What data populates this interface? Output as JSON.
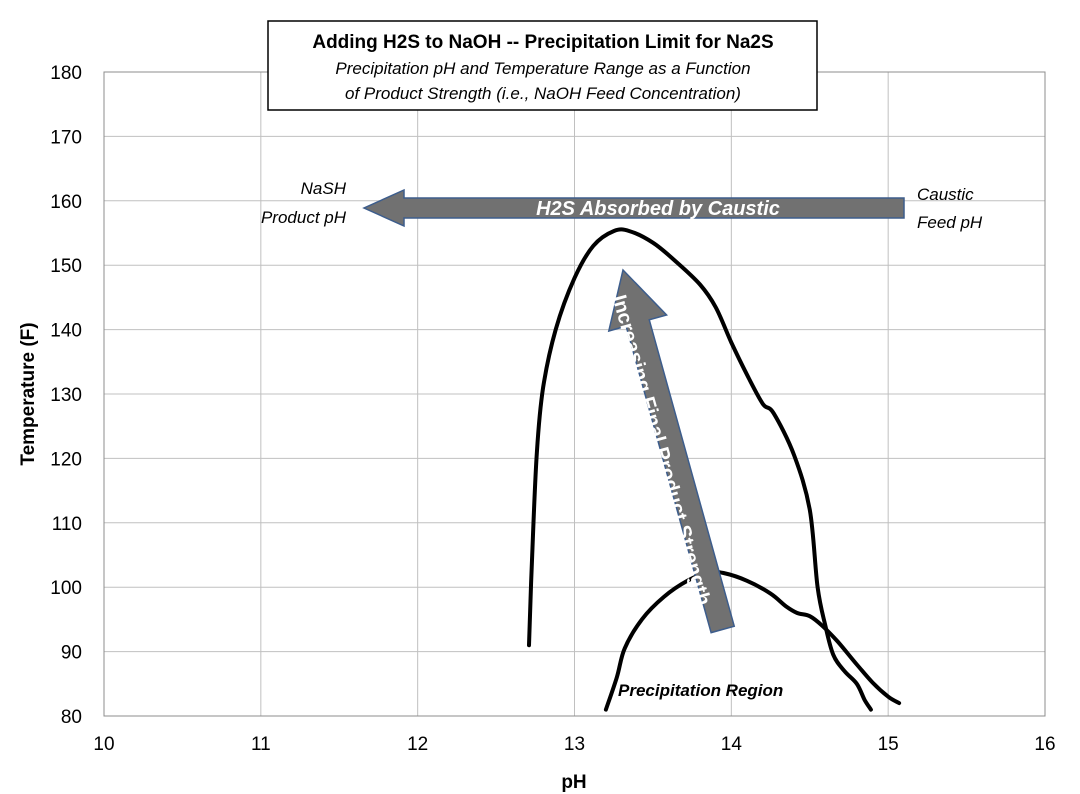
{
  "chart_data": {
    "type": "line",
    "title": "Adding H2S to NaOH -- Precipitation Limit for Na2S",
    "subtitle_lines": [
      "Precipitation pH and Temperature Range as a Function",
      "of Product Strength (i.e., NaOH Feed Concentration)"
    ],
    "xlabel": "pH",
    "ylabel": "Temperature (F)",
    "xlim": [
      10,
      16
    ],
    "ylim": [
      80,
      180
    ],
    "x_ticks": [
      10,
      11,
      12,
      13,
      14,
      15,
      16
    ],
    "y_ticks": [
      80,
      90,
      100,
      110,
      120,
      130,
      140,
      150,
      160,
      170,
      180
    ],
    "grid": true,
    "legend": "none",
    "series": [
      {
        "color": "#000000",
        "points": [
          [
            12.71,
            91
          ],
          [
            12.73,
            105
          ],
          [
            12.76,
            121
          ],
          [
            12.8,
            131
          ],
          [
            12.88,
            140
          ],
          [
            13.0,
            148
          ],
          [
            13.12,
            153
          ],
          [
            13.25,
            155.3
          ],
          [
            13.35,
            155.3
          ],
          [
            13.5,
            153.5
          ],
          [
            13.65,
            150.5
          ],
          [
            13.8,
            147
          ],
          [
            13.9,
            143.5
          ],
          [
            14.0,
            138
          ],
          [
            14.1,
            133
          ],
          [
            14.2,
            128.5
          ],
          [
            14.27,
            127
          ],
          [
            14.4,
            120.5
          ],
          [
            14.5,
            112
          ],
          [
            14.55,
            100
          ],
          [
            14.6,
            94
          ],
          [
            14.65,
            89.5
          ],
          [
            14.72,
            87
          ],
          [
            14.8,
            85
          ],
          [
            14.85,
            82.5
          ],
          [
            14.89,
            81
          ]
        ]
      },
      {
        "color": "#000000",
        "points": [
          [
            13.2,
            81
          ],
          [
            13.27,
            86
          ],
          [
            13.32,
            90.5
          ],
          [
            13.43,
            95
          ],
          [
            13.57,
            98.5
          ],
          [
            13.72,
            101
          ],
          [
            13.85,
            102.3
          ],
          [
            13.95,
            102.2
          ],
          [
            14.1,
            101
          ],
          [
            14.25,
            99
          ],
          [
            14.35,
            97
          ],
          [
            14.42,
            96
          ],
          [
            14.5,
            95.5
          ],
          [
            14.58,
            94
          ],
          [
            14.68,
            91.5
          ],
          [
            14.8,
            88
          ],
          [
            14.9,
            85.2
          ],
          [
            15.0,
            83
          ],
          [
            15.07,
            82
          ]
        ]
      }
    ],
    "annotations": {
      "nash_lines": [
        "NaSH",
        "Product pH"
      ],
      "caustic_lines": [
        "Caustic",
        "Feed pH"
      ],
      "horizontal_arrow_label": "H2S Absorbed by Caustic",
      "diagonal_arrow_label": "Increasing Final Product Strength",
      "region_label": "Precipitation Region"
    },
    "colors": {
      "arrow_fill": "#717171",
      "arrow_stroke": "#3d5d8c",
      "grid": "#c0c0c0",
      "curve": "#000000"
    }
  }
}
